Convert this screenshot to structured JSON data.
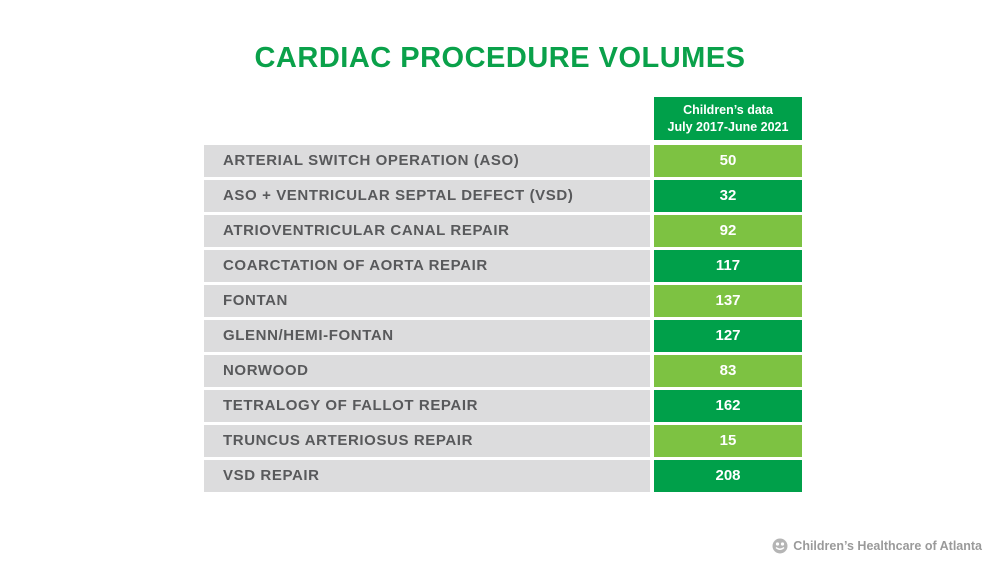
{
  "chart_data": {
    "type": "table",
    "title": "CARDIAC PROCEDURE VOLUMES",
    "column_header": [
      "Children’s data",
      "July 2017-June 2021"
    ],
    "rows": [
      {
        "label": "ARTERIAL SWITCH OPERATION (ASO)",
        "value": "50"
      },
      {
        "label": "ASO + VENTRICULAR SEPTAL DEFECT (VSD)",
        "value": "32"
      },
      {
        "label": "ATRIOVENTRICULAR CANAL REPAIR",
        "value": "92"
      },
      {
        "label": "COARCTATION OF AORTA REPAIR",
        "value": "117"
      },
      {
        "label": "FONTAN",
        "value": "137"
      },
      {
        "label": "GLENN/HEMI-FONTAN",
        "value": "127"
      },
      {
        "label": "NORWOOD",
        "value": "83"
      },
      {
        "label": "TETRALOGY OF FALLOT REPAIR",
        "value": "162"
      },
      {
        "label": "TRUNCUS ARTERIOSUS REPAIR",
        "value": "15"
      },
      {
        "label": "VSD REPAIR",
        "value": "208"
      }
    ]
  },
  "colors": {
    "title": "#0aa14a",
    "header_bg": "#00a04a",
    "value_light": "#7dc242",
    "value_dark": "#00a04a",
    "label_bg": "#dcdcdd",
    "label_text": "#58595b"
  },
  "footer": {
    "logo_text": "Children’s Healthcare of Atlanta",
    "logo_icon": "childrens-logo-icon"
  }
}
